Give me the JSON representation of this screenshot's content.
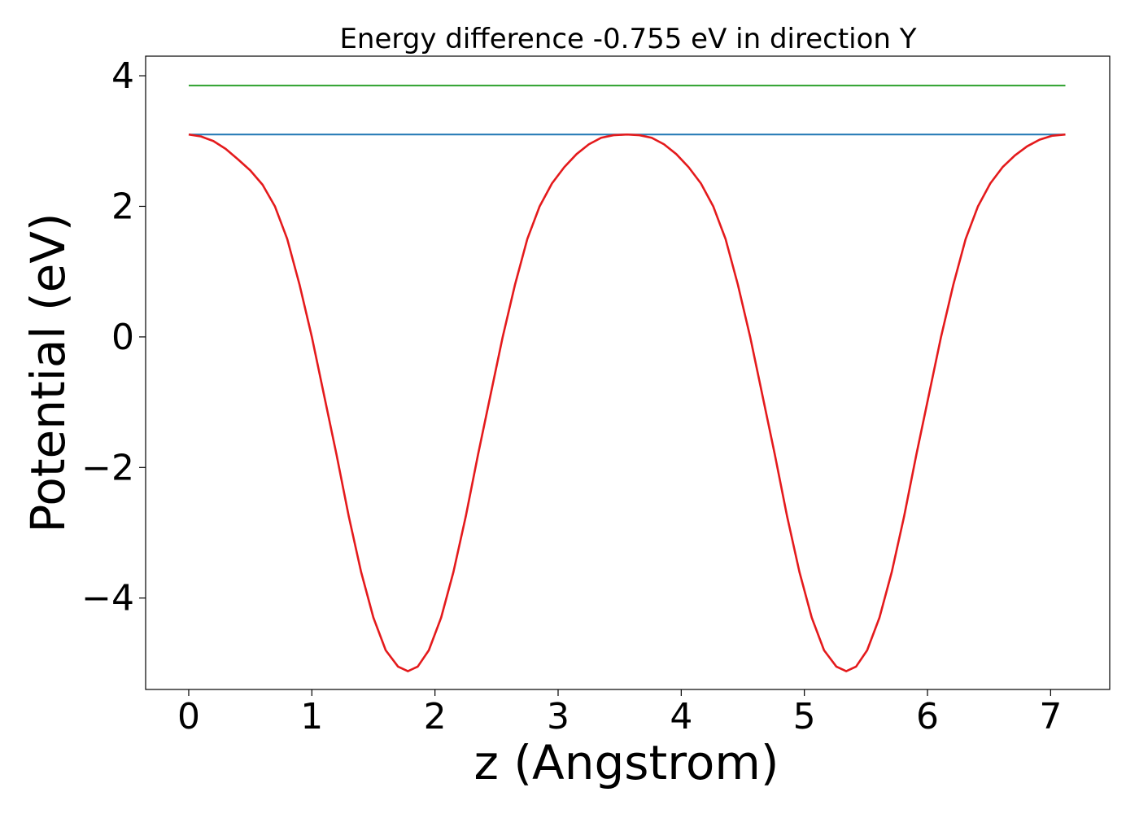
{
  "chart_data": {
    "type": "line",
    "title": "Energy difference -0.755 eV in direction Y",
    "xlabel": "z (Angstrom)",
    "ylabel": "Potential (eV)",
    "xlim": [
      -0.35,
      7.48
    ],
    "ylim": [
      -5.4,
      4.3
    ],
    "xticks": [
      0,
      1,
      2,
      3,
      4,
      5,
      6,
      7
    ],
    "xtick_labels": [
      "0",
      "1",
      "2",
      "3",
      "4",
      "5",
      "6",
      "7"
    ],
    "yticks": [
      4,
      2,
      0,
      -2,
      -4
    ],
    "ytick_labels": [
      "4",
      "2",
      "0",
      "−2",
      "−4"
    ],
    "grid": false,
    "series": [
      {
        "name": "level-green",
        "color": "#2ca02c",
        "x": [
          0,
          7.12
        ],
        "y": [
          3.85,
          3.85
        ]
      },
      {
        "name": "level-blue",
        "color": "#1f77b4",
        "x": [
          0,
          7.12
        ],
        "y": [
          3.1,
          3.1
        ]
      },
      {
        "name": "potential",
        "color": "#e41a1c",
        "x": [
          0,
          0.1,
          0.2,
          0.3,
          0.4,
          0.5,
          0.6,
          0.7,
          0.8,
          0.9,
          1.0,
          1.1,
          1.2,
          1.3,
          1.4,
          1.5,
          1.6,
          1.7,
          1.78,
          1.86,
          1.95,
          2.05,
          2.15,
          2.25,
          2.35,
          2.45,
          2.55,
          2.65,
          2.75,
          2.85,
          2.95,
          3.05,
          3.15,
          3.25,
          3.35,
          3.45,
          3.56,
          3.66,
          3.76,
          3.86,
          3.96,
          4.06,
          4.16,
          4.26,
          4.36,
          4.46,
          4.56,
          4.66,
          4.76,
          4.86,
          4.96,
          5.06,
          5.16,
          5.26,
          5.34,
          5.42,
          5.51,
          5.61,
          5.71,
          5.81,
          5.91,
          6.01,
          6.11,
          6.21,
          6.31,
          6.41,
          6.51,
          6.61,
          6.71,
          6.81,
          6.91,
          7.01,
          7.12
        ],
        "y": [
          3.1,
          3.07,
          3.0,
          2.88,
          2.72,
          2.55,
          2.33,
          2.0,
          1.5,
          0.8,
          0.0,
          -0.9,
          -1.8,
          -2.75,
          -3.6,
          -4.3,
          -4.8,
          -5.05,
          -5.12,
          -5.05,
          -4.8,
          -4.3,
          -3.6,
          -2.75,
          -1.8,
          -0.9,
          0.0,
          0.8,
          1.5,
          2.0,
          2.35,
          2.6,
          2.8,
          2.95,
          3.05,
          3.09,
          3.1,
          3.09,
          3.05,
          2.95,
          2.8,
          2.6,
          2.35,
          2.0,
          1.5,
          0.8,
          0.0,
          -0.9,
          -1.8,
          -2.75,
          -3.6,
          -4.3,
          -4.8,
          -5.05,
          -5.12,
          -5.05,
          -4.8,
          -4.3,
          -3.6,
          -2.75,
          -1.8,
          -0.9,
          0.0,
          0.8,
          1.5,
          2.0,
          2.35,
          2.6,
          2.78,
          2.92,
          3.02,
          3.08,
          3.1
        ]
      }
    ]
  }
}
